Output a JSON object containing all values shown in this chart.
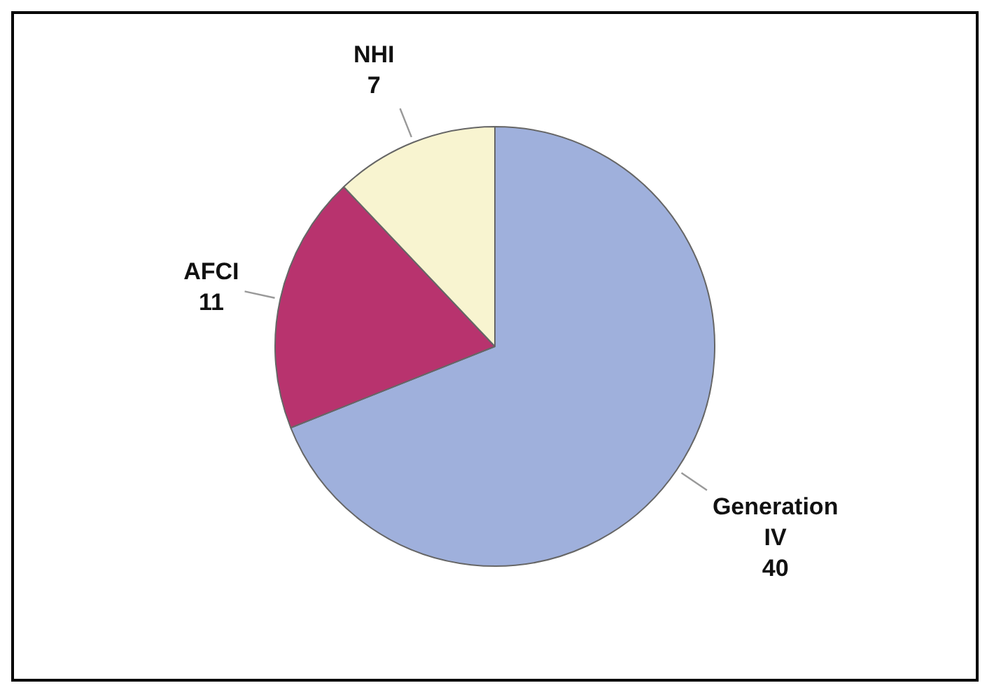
{
  "chart_data": {
    "type": "pie",
    "categories": [
      "Generation IV",
      "AFCI",
      "NHI"
    ],
    "values": [
      40,
      11,
      7
    ],
    "colors": [
      "#9fb0dc",
      "#b8336e",
      "#f8f4d0"
    ],
    "data_labels": true,
    "legend": false
  }
}
